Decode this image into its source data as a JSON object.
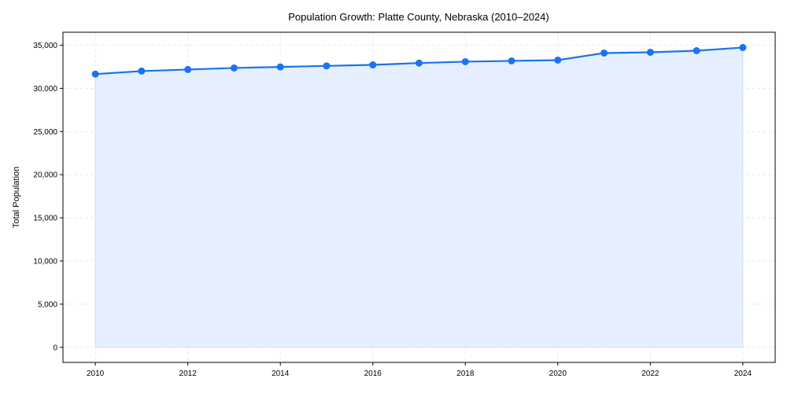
{
  "chart_data": {
    "type": "line",
    "title": "Population Growth: Platte County, Nebraska (2010–2024)",
    "xlabel": "",
    "ylabel": "Total Population",
    "x": [
      2010,
      2011,
      2012,
      2013,
      2014,
      2015,
      2016,
      2017,
      2018,
      2019,
      2020,
      2021,
      2022,
      2023,
      2024
    ],
    "series": [
      {
        "name": "Total Population",
        "values": [
          31650,
          32000,
          32180,
          32360,
          32480,
          32600,
          32720,
          32930,
          33090,
          33180,
          33270,
          34090,
          34180,
          34360,
          34730
        ],
        "color": "#1a73f0",
        "fill": "#e5efff"
      }
    ],
    "xlim": [
      2009.3,
      2024.7
    ],
    "ylim": [
      -1750,
      36500
    ],
    "xticks": [
      2010,
      2012,
      2014,
      2016,
      2018,
      2020,
      2022,
      2024
    ],
    "xtick_labels": [
      "2010",
      "2012",
      "2014",
      "2016",
      "2018",
      "2020",
      "2022",
      "2024"
    ],
    "yticks": [
      0,
      5000,
      10000,
      15000,
      20000,
      25000,
      30000,
      35000
    ],
    "ytick_labels": [
      "0",
      "5,000",
      "10,000",
      "15,000",
      "20,000",
      "25,000",
      "30,000",
      "35,000"
    ],
    "grid": true,
    "legend": "none"
  }
}
